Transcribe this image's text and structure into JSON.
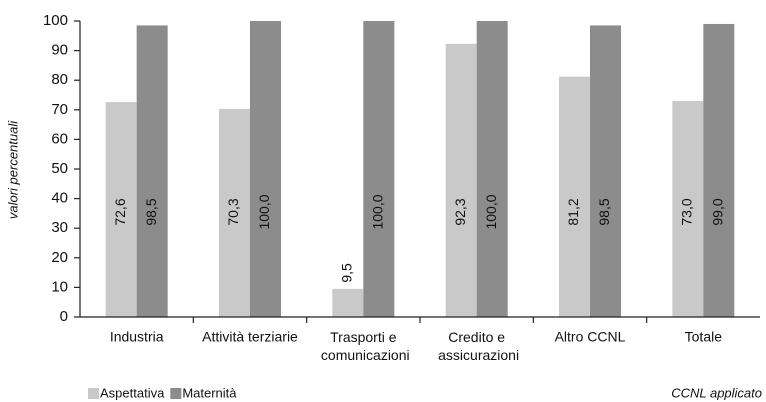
{
  "chart_data": {
    "type": "bar",
    "y_label": "valori percentuali",
    "x_label": "CCNL applicato",
    "categories": [
      "Industria",
      "Attività terziarie",
      "Trasporti e comunicazioni",
      "Credito e assicurazioni",
      "Altro CCNL",
      "Totale"
    ],
    "series": [
      {
        "name": "Aspettativa",
        "color": "#c9c9c9",
        "values": [
          72.6,
          70.3,
          9.5,
          92.3,
          81.2,
          73.0
        ],
        "value_labels": [
          "72,6",
          "70,3",
          "9,5",
          "92,3",
          "81,2",
          "73,0"
        ]
      },
      {
        "name": "Maternità",
        "color": "#8c8c8c",
        "values": [
          98.5,
          100.0,
          100.0,
          100.0,
          98.5,
          99.0
        ],
        "value_labels": [
          "98,5",
          "100,0",
          "100,0",
          "100,0",
          "98,5",
          "99,0"
        ]
      }
    ],
    "ylim": [
      0,
      100
    ],
    "yticks": [
      0,
      10,
      20,
      30,
      40,
      50,
      60,
      70,
      80,
      90,
      100
    ],
    "legend": "bottom-left"
  }
}
